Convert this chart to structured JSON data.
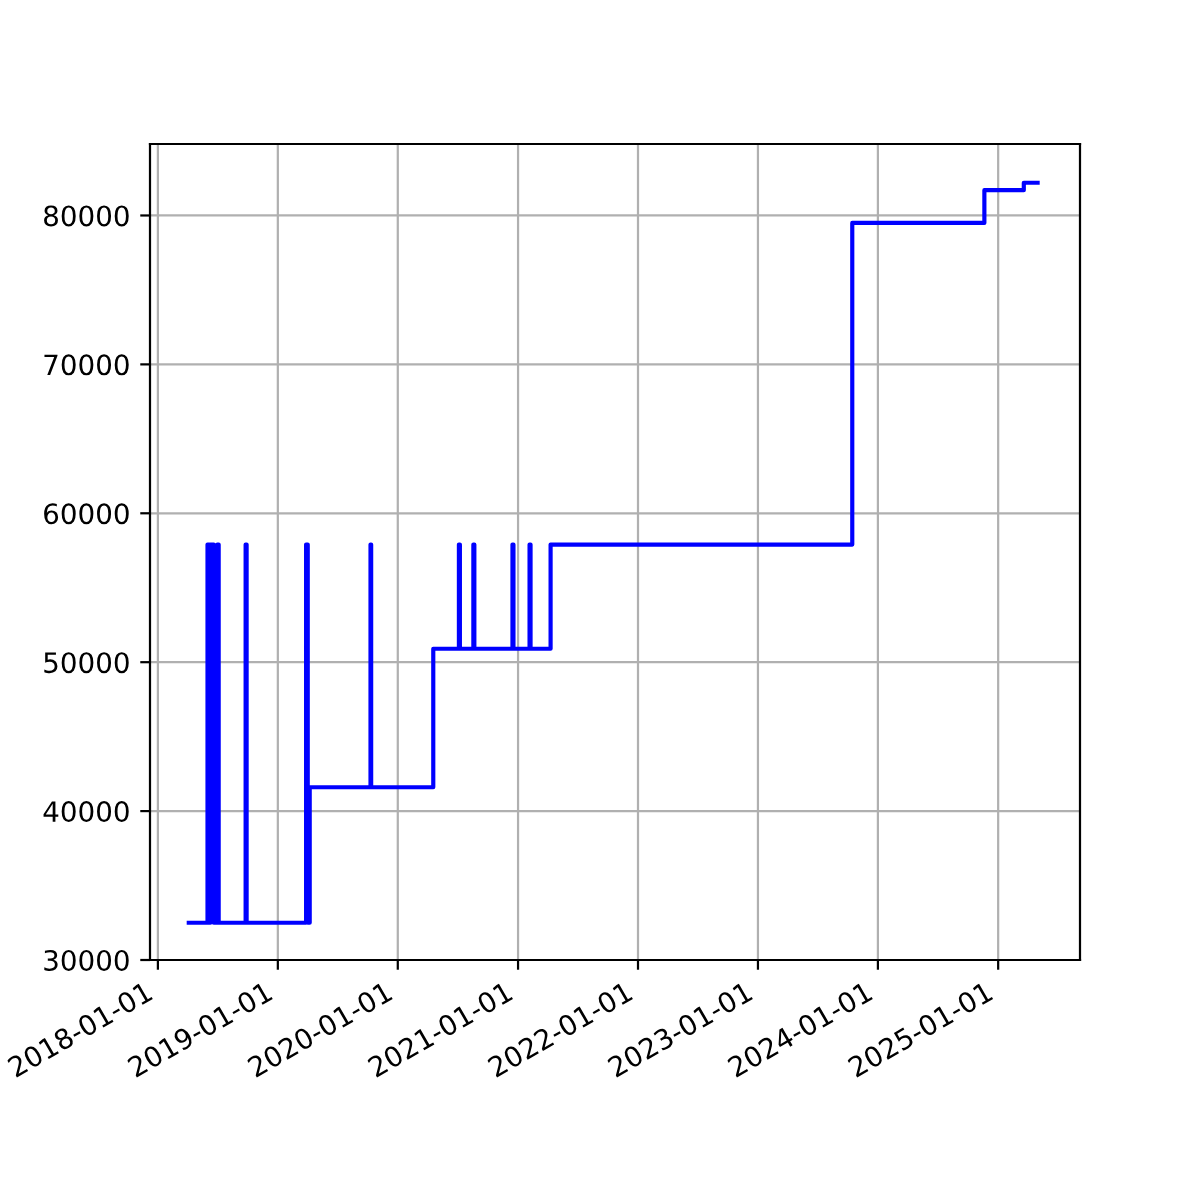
{
  "chart_data": {
    "type": "line",
    "xlim": [
      "2017-12-08",
      "2025-09-07"
    ],
    "ylim": [
      30000,
      84800
    ],
    "xticks": [
      {
        "value": "2018-01-01",
        "label": "2018-01-01"
      },
      {
        "value": "2019-01-01",
        "label": "2019-01-01"
      },
      {
        "value": "2020-01-01",
        "label": "2020-01-01"
      },
      {
        "value": "2021-01-01",
        "label": "2021-01-01"
      },
      {
        "value": "2022-01-01",
        "label": "2022-01-01"
      },
      {
        "value": "2023-01-01",
        "label": "2023-01-01"
      },
      {
        "value": "2024-01-01",
        "label": "2024-01-01"
      },
      {
        "value": "2025-01-01",
        "label": "2025-01-01"
      }
    ],
    "yticks": [
      30000,
      40000,
      50000,
      60000,
      70000,
      80000
    ],
    "grid": true,
    "legend": false,
    "marker": "none",
    "line_style": "solid",
    "series": [
      {
        "color": "#0000ff",
        "x": [
          "2018-04-05",
          "2018-06-01",
          "2018-06-01",
          "2018-06-05",
          "2018-06-05",
          "2018-06-10",
          "2018-06-10",
          "2018-06-20",
          "2018-06-20",
          "2018-07-01",
          "2018-07-01",
          "2018-07-05",
          "2018-07-05",
          "2018-09-25",
          "2018-09-25",
          "2018-09-28",
          "2018-09-28",
          "2019-03-28",
          "2019-03-28",
          "2019-04-02",
          "2019-04-02",
          "2019-04-08",
          "2019-04-08",
          "2019-10-10",
          "2019-10-10",
          "2019-10-12",
          "2019-10-12",
          "2020-04-18",
          "2020-04-18",
          "2020-07-05",
          "2020-07-05",
          "2020-07-08",
          "2020-07-08",
          "2020-08-18",
          "2020-08-18",
          "2020-08-21",
          "2020-08-21",
          "2020-12-15",
          "2020-12-15",
          "2020-12-18",
          "2020-12-18",
          "2021-02-05",
          "2021-02-05",
          "2021-02-08",
          "2021-02-08",
          "2021-04-10",
          "2021-04-10",
          "2023-10-15",
          "2023-10-15",
          "2024-11-20",
          "2024-11-20",
          "2025-03-20",
          "2025-03-20",
          "2025-05-01"
        ],
        "values": [
          32500,
          32500,
          57900,
          57900,
          32500,
          32500,
          57900,
          57900,
          32500,
          32500,
          57900,
          57900,
          32500,
          32500,
          57900,
          57900,
          32500,
          32500,
          57900,
          57900,
          32500,
          32500,
          41600,
          41600,
          57900,
          57900,
          41600,
          41600,
          50900,
          50900,
          57900,
          57900,
          50900,
          50900,
          57900,
          57900,
          50900,
          50900,
          57900,
          57900,
          50900,
          50900,
          57900,
          57900,
          50900,
          50900,
          57900,
          57900,
          79500,
          79500,
          81700,
          81700,
          82200,
          82200
        ]
      }
    ]
  }
}
